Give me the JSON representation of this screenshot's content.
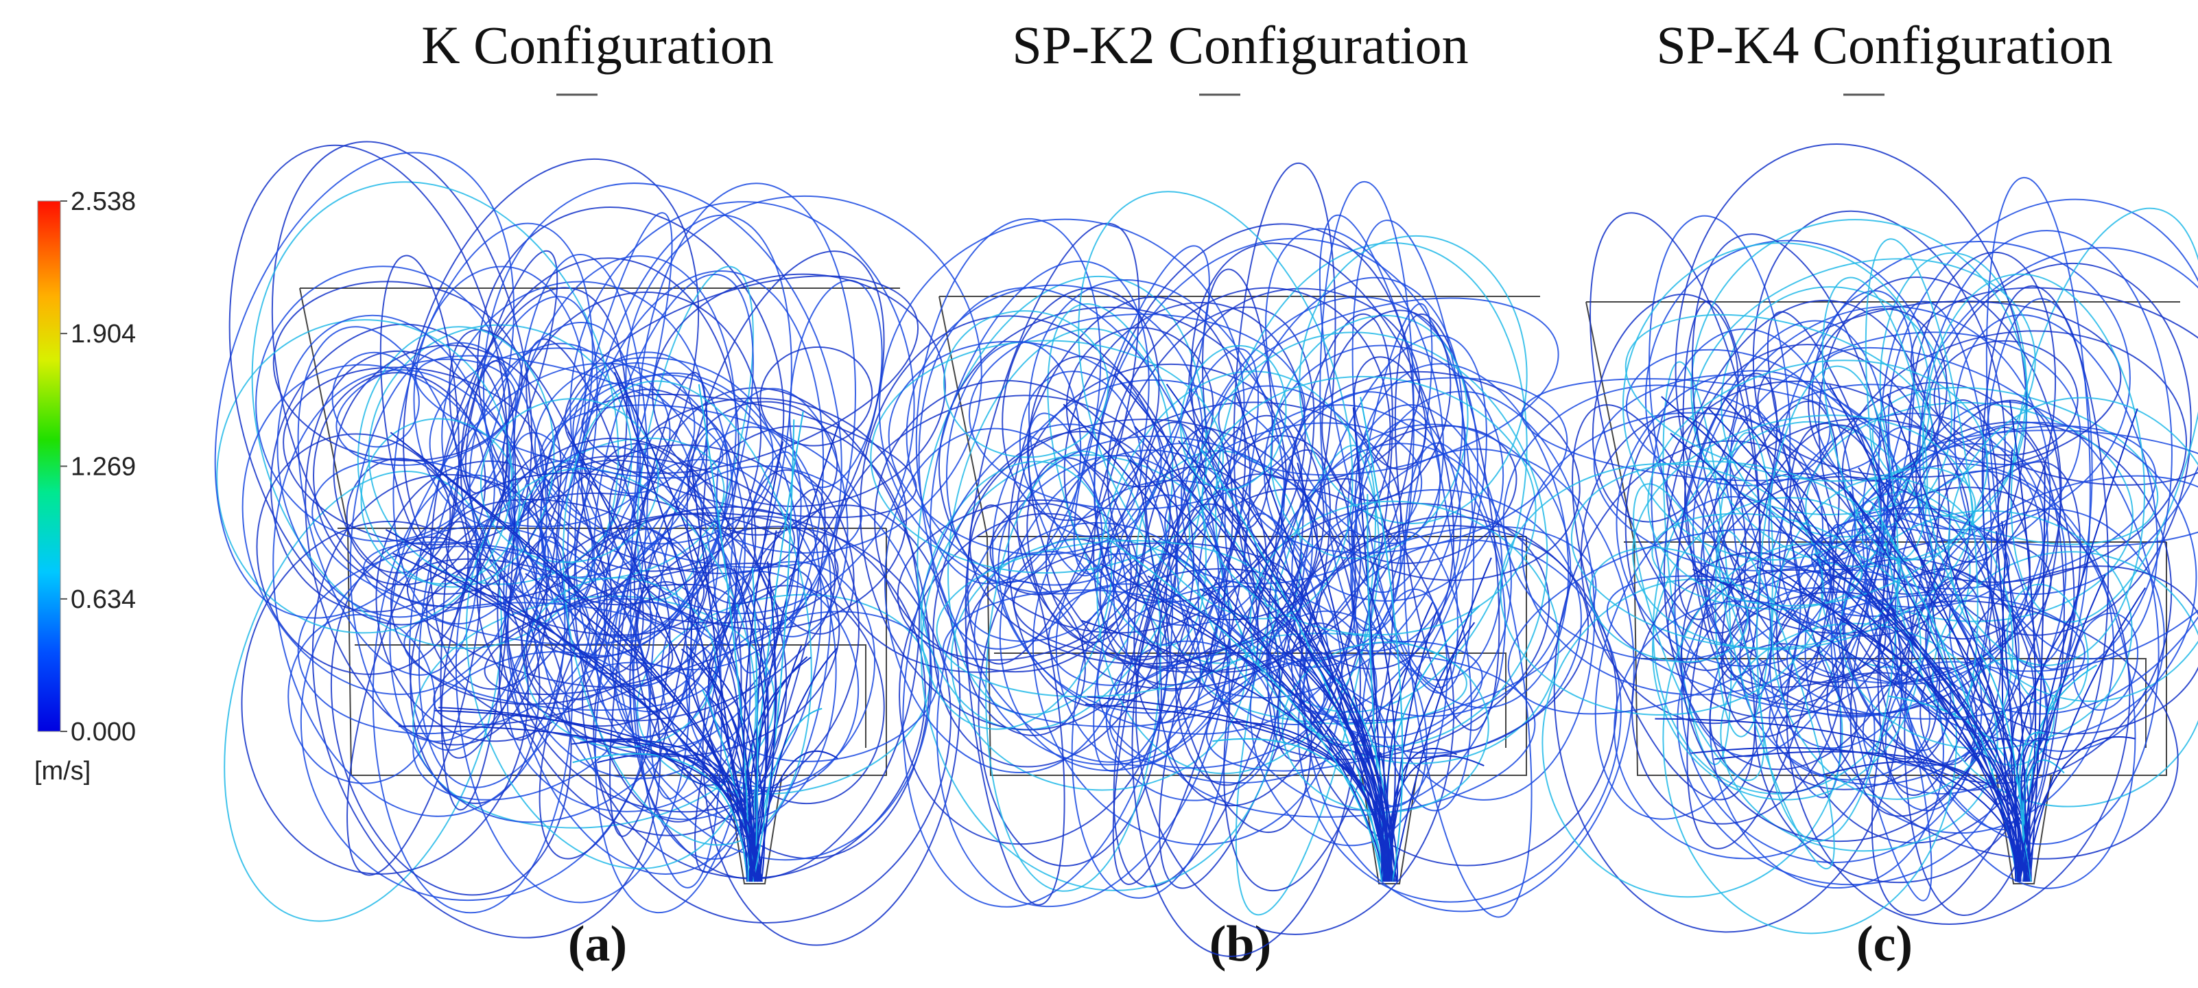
{
  "panels": [
    {
      "title": "K Configuration",
      "label": "(a)"
    },
    {
      "title": "SP-K2 Configuration",
      "label": "(b)"
    },
    {
      "title": "SP-K4 Configuration",
      "label": "(c)"
    }
  ],
  "colorbar": {
    "lim": [
      0,
      2.538
    ],
    "ticks": [
      {
        "value": 2.538,
        "label": "2.538"
      },
      {
        "value": 1.904,
        "label": "1.904"
      },
      {
        "value": 1.269,
        "label": "1.269"
      },
      {
        "value": 0.634,
        "label": "0.634"
      },
      {
        "value": 0,
        "label": "0.000"
      }
    ],
    "unit": "[m/s]"
  }
}
